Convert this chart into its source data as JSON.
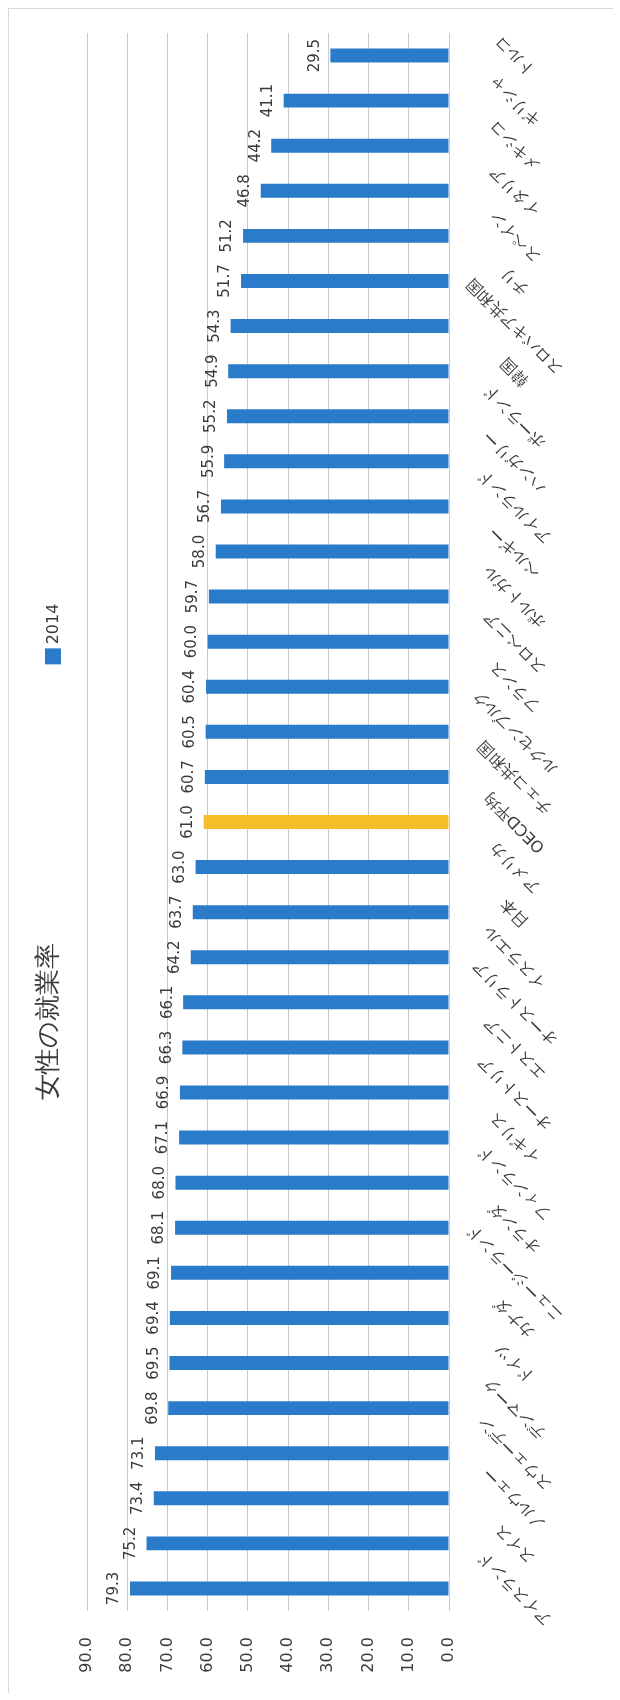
{
  "chart_data": {
    "type": "bar",
    "title": "女性の就業率",
    "orientation": "horizontal",
    "categories": [
      "トルコ",
      "ギリシャ",
      "メキシコ",
      "イタリア",
      "スペイン",
      "チリ",
      "スロバキア共和国",
      "韓国",
      "ポーランド",
      "ハンガリー",
      "アイルランド",
      "ベルギー",
      "ポルトガル",
      "スロベニア",
      "フランス",
      "ルクセンブルク",
      "チェコ共和国",
      "OECD平均",
      "アメリカ",
      "日本",
      "イスラエル",
      "オーストラリア",
      "エストニア",
      "オーストリア",
      "イギリス",
      "フィンランド",
      "オランダ",
      "ニュージーランド",
      "カナダ",
      "ドイツ",
      "デンマーク",
      "スウェーデン",
      "ノルウェー",
      "スイス",
      "アイスランド"
    ],
    "series": [
      {
        "name": "2014",
        "color": "#2a7bc9",
        "colors": [
          "#2a7bc9",
          "#2a7bc9",
          "#2a7bc9",
          "#2a7bc9",
          "#2a7bc9",
          "#2a7bc9",
          "#2a7bc9",
          "#2a7bc9",
          "#2a7bc9",
          "#2a7bc9",
          "#2a7bc9",
          "#2a7bc9",
          "#2a7bc9",
          "#2a7bc9",
          "#2a7bc9",
          "#2a7bc9",
          "#2a7bc9",
          "#f5bf2a",
          "#2a7bc9",
          "#2a7bc9",
          "#2a7bc9",
          "#2a7bc9",
          "#2a7bc9",
          "#2a7bc9",
          "#2a7bc9",
          "#2a7bc9",
          "#2a7bc9",
          "#2a7bc9",
          "#2a7bc9",
          "#2a7bc9",
          "#2a7bc9",
          "#2a7bc9",
          "#2a7bc9",
          "#2a7bc9",
          "#2a7bc9"
        ],
        "values": [
          29.5,
          41.1,
          44.2,
          46.8,
          51.2,
          51.7,
          54.3,
          54.9,
          55.2,
          55.9,
          56.7,
          58.0,
          59.7,
          60.0,
          60.4,
          60.5,
          60.7,
          61.0,
          63.0,
          63.7,
          64.2,
          66.1,
          66.3,
          66.9,
          67.1,
          68.0,
          68.1,
          69.1,
          69.4,
          69.5,
          69.8,
          73.1,
          73.4,
          75.2,
          79.3
        ],
        "value_labels": [
          "29.5",
          "41.1",
          "44.2",
          "46.8",
          "51.2",
          "51.7",
          "54.3",
          "54.9",
          "55.2",
          "55.9",
          "56.7",
          "58.0",
          "59.7",
          "60.0",
          "60.4",
          "60.5",
          "60.7",
          "61.0",
          "63.0",
          "63.7",
          "64.2",
          "66.1",
          "66.3",
          "66.9",
          "67.1",
          "68.0",
          "68.1",
          "69.1",
          "69.4",
          "69.5",
          "69.8",
          "73.1",
          "73.4",
          "75.2",
          "79.3"
        ]
      }
    ],
    "xlim": [
      90,
      0
    ],
    "xticks": [
      {
        "value": 90,
        "label": "90.0"
      },
      {
        "value": 80,
        "label": "80.0"
      },
      {
        "value": 70,
        "label": "70.0"
      },
      {
        "value": 60,
        "label": "60.0"
      },
      {
        "value": 50,
        "label": "50.0"
      },
      {
        "value": 40,
        "label": "40.0"
      },
      {
        "value": 30,
        "label": "30.0"
      },
      {
        "value": 20,
        "label": "20.0"
      },
      {
        "value": 10,
        "label": "10.0"
      },
      {
        "value": 0,
        "label": "0.0"
      }
    ],
    "grid": "x",
    "legend": "left"
  }
}
